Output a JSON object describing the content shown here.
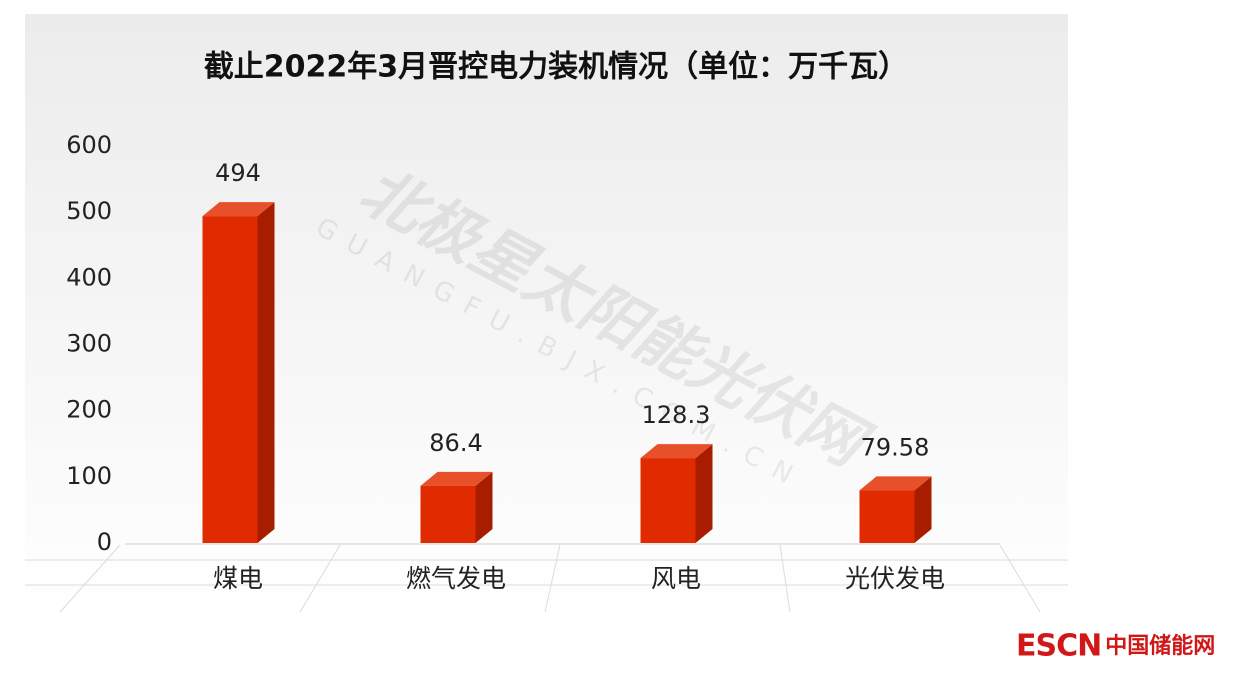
{
  "chart_data": {
    "type": "bar",
    "title": "截止2022年3月晋控电力装机情况（单位：万千瓦）",
    "categories": [
      "煤电",
      "燃气发电",
      "风电",
      "光伏发电"
    ],
    "values": [
      494,
      86.4,
      128.3,
      79.58
    ],
    "color": "#e02a00",
    "ylim": [
      0,
      600
    ],
    "yticks": [
      0,
      100,
      200,
      300,
      400,
      500,
      600
    ],
    "grid": false,
    "watermark": "北极星太阳能光伏网",
    "watermark_sub": "GUANGFU.BJX.COM.CN"
  },
  "logo": {
    "mark": "ESCN",
    "name": "中国储能网"
  }
}
